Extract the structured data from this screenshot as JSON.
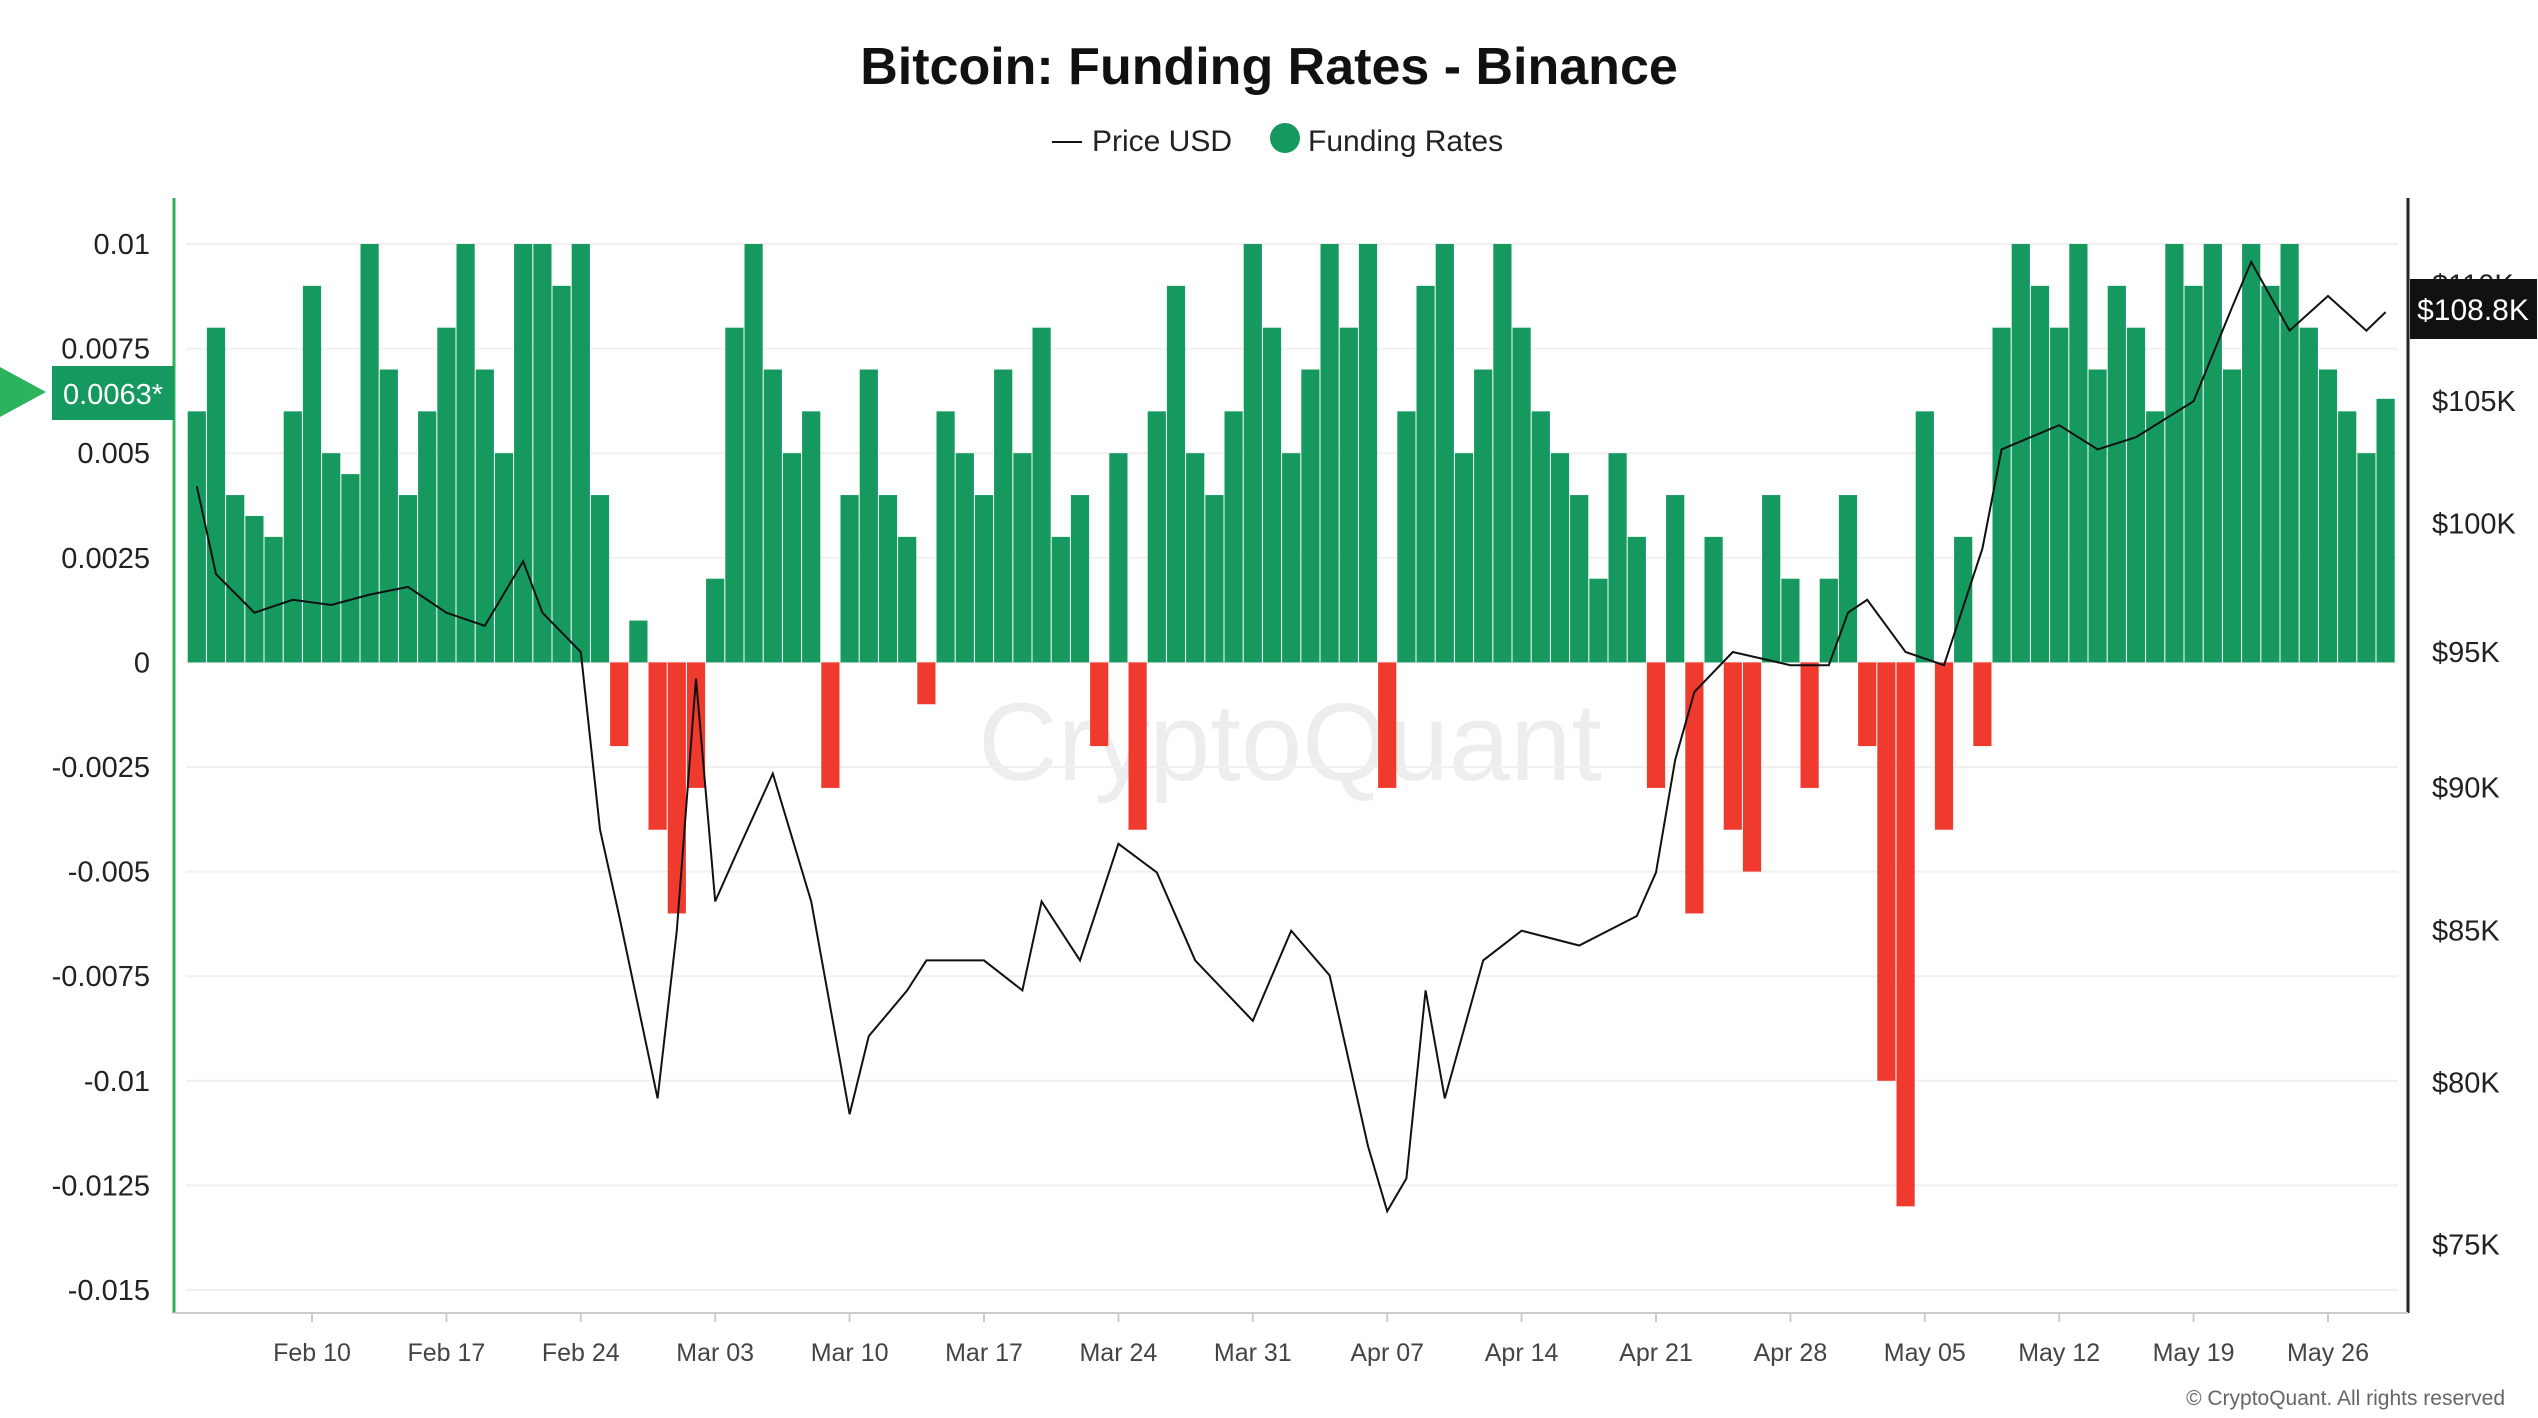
{
  "chart_data": {
    "type": "bar+line",
    "title": "Bitcoin: Funding Rates - Binance",
    "legend": {
      "placement": "top-center",
      "entries": [
        {
          "label": "Price USD",
          "symbol": "line",
          "color": "#111111"
        },
        {
          "label": "Funding Rates",
          "symbol": "dot",
          "color": "#15995f"
        }
      ]
    },
    "colors": {
      "positive": "#15995f",
      "negative": "#f03a2e",
      "price": "#111111",
      "axis_left": "#2db35d"
    },
    "left_axis": {
      "range": [
        -0.015,
        0.01
      ],
      "ticks": [
        "0.01",
        "0.0075",
        "0.005",
        "0.0025",
        "0",
        "-0.0025",
        "-0.005",
        "-0.0075",
        "-0.01",
        "-0.0125",
        "-0.015"
      ]
    },
    "right_axis": {
      "scale": "log",
      "range": [
        75000,
        110000
      ],
      "ticks": [
        {
          "value": 110000,
          "label": "$110K"
        },
        {
          "value": 105000,
          "label": "$105K"
        },
        {
          "value": 100000,
          "label": "$100K"
        },
        {
          "value": 95000,
          "label": "$95K"
        },
        {
          "value": 90000,
          "label": "$90K"
        },
        {
          "value": 85000,
          "label": "$85K"
        },
        {
          "value": 80000,
          "label": "$80K"
        },
        {
          "value": 75000,
          "label": "$75K"
        }
      ]
    },
    "x_ticks": [
      "Feb 10",
      "Feb 17",
      "Feb 24",
      "Mar 03",
      "Mar 10",
      "Mar 17",
      "Mar 24",
      "Mar 31",
      "Apr 07",
      "Apr 14",
      "Apr 21",
      "Apr 28",
      "May 05",
      "May 12",
      "May 19",
      "May 26"
    ],
    "current_funding_label": "0.0063*",
    "current_price_label": "$108.8K",
    "watermark": "CryptoQuant",
    "footer": "© CryptoQuant. All rights reserved",
    "grid": true,
    "funding_dates": [
      "Feb 04",
      "Feb 05",
      "Feb 06",
      "Feb 07",
      "Feb 08",
      "Feb 09",
      "Feb 10",
      "Feb 11",
      "Feb 12",
      "Feb 13",
      "Feb 14",
      "Feb 15",
      "Feb 16",
      "Feb 17",
      "Feb 18",
      "Feb 19",
      "Feb 20",
      "Feb 21",
      "Feb 22",
      "Feb 23",
      "Feb 24",
      "Feb 25",
      "Feb 26",
      "Feb 27",
      "Feb 28",
      "Mar 01",
      "Mar 02",
      "Mar 03",
      "Mar 04",
      "Mar 05",
      "Mar 06",
      "Mar 07",
      "Mar 08",
      "Mar 09",
      "Mar 10",
      "Mar 11",
      "Mar 12",
      "Mar 13",
      "Mar 14",
      "Mar 15",
      "Mar 16",
      "Mar 17",
      "Mar 18",
      "Mar 19",
      "Mar 20",
      "Mar 21",
      "Mar 22",
      "Mar 23",
      "Mar 24",
      "Mar 25",
      "Mar 26",
      "Mar 27",
      "Mar 28",
      "Mar 29",
      "Mar 30",
      "Mar 31",
      "Apr 01",
      "Apr 02",
      "Apr 03",
      "Apr 04",
      "Apr 05",
      "Apr 06",
      "Apr 07",
      "Apr 08",
      "Apr 09",
      "Apr 10",
      "Apr 11",
      "Apr 12",
      "Apr 13",
      "Apr 14",
      "Apr 15",
      "Apr 16",
      "Apr 17",
      "Apr 18",
      "Apr 19",
      "Apr 20",
      "Apr 21",
      "Apr 22",
      "Apr 23",
      "Apr 24",
      "Apr 25",
      "Apr 26",
      "Apr 27",
      "Apr 28",
      "Apr 29",
      "Apr 30",
      "May 01",
      "May 02",
      "May 03",
      "May 04",
      "May 05",
      "May 06",
      "May 07",
      "May 08",
      "May 09",
      "May 10",
      "May 11",
      "May 12",
      "May 13",
      "May 14",
      "May 15",
      "May 16",
      "May 17",
      "May 18",
      "May 19",
      "May 20",
      "May 21",
      "May 22",
      "May 23",
      "May 24",
      "May 25",
      "May 26",
      "May 27",
      "May 28",
      "May 29"
    ],
    "funding_rates": [
      0.006,
      0.008,
      0.004,
      0.0035,
      0.003,
      0.006,
      0.009,
      0.005,
      0.0045,
      0.01,
      0.007,
      0.004,
      0.006,
      0.008,
      0.01,
      0.007,
      0.005,
      0.01,
      0.01,
      0.009,
      0.01,
      0.004,
      -0.002,
      0.001,
      -0.004,
      -0.006,
      -0.003,
      0.002,
      0.008,
      0.01,
      0.007,
      0.005,
      0.006,
      -0.003,
      0.004,
      0.007,
      0.004,
      0.003,
      -0.001,
      0.006,
      0.005,
      0.004,
      0.007,
      0.005,
      0.008,
      0.003,
      0.004,
      -0.002,
      0.005,
      -0.004,
      0.006,
      0.009,
      0.005,
      0.004,
      0.006,
      0.01,
      0.008,
      0.005,
      0.007,
      0.01,
      0.008,
      0.01,
      -0.003,
      0.006,
      0.009,
      0.01,
      0.005,
      0.007,
      0.01,
      0.008,
      0.006,
      0.005,
      0.004,
      0.002,
      0.005,
      0.003,
      -0.003,
      0.004,
      -0.006,
      0.003,
      -0.004,
      -0.005,
      0.004,
      0.002,
      -0.003,
      0.002,
      0.004,
      -0.002,
      -0.01,
      -0.013,
      0.006,
      -0.004,
      0.003,
      -0.002,
      0.008,
      0.01,
      0.009,
      0.008,
      0.01,
      0.007,
      0.009,
      0.008,
      0.006,
      0.01,
      0.009,
      0.01,
      0.007,
      0.01,
      0.009,
      0.01,
      0.008,
      0.007,
      0.006,
      0.005,
      0.0063
    ],
    "price_points": [
      [
        "Feb 04",
        101500
      ],
      [
        "Feb 05",
        98000
      ],
      [
        "Feb 07",
        96500
      ],
      [
        "Feb 09",
        97000
      ],
      [
        "Feb 11",
        96800
      ],
      [
        "Feb 13",
        97200
      ],
      [
        "Feb 15",
        97500
      ],
      [
        "Feb 17",
        96500
      ],
      [
        "Feb 19",
        96000
      ],
      [
        "Feb 21",
        98500
      ],
      [
        "Feb 22",
        96500
      ],
      [
        "Feb 24",
        95000
      ],
      [
        "Feb 25",
        88500
      ],
      [
        "Feb 26",
        85500
      ],
      [
        "Feb 28",
        79500
      ],
      [
        "Mar 01",
        85000
      ],
      [
        "Mar 02",
        94000
      ],
      [
        "Mar 03",
        86000
      ],
      [
        "Mar 04",
        87500
      ],
      [
        "Mar 06",
        90500
      ],
      [
        "Mar 08",
        86000
      ],
      [
        "Mar 10",
        79000
      ],
      [
        "Mar 11",
        81500
      ],
      [
        "Mar 13",
        83000
      ],
      [
        "Mar 14",
        84000
      ],
      [
        "Mar 17",
        84000
      ],
      [
        "Mar 19",
        83000
      ],
      [
        "Mar 20",
        86000
      ],
      [
        "Mar 22",
        84000
      ],
      [
        "Mar 24",
        88000
      ],
      [
        "Mar 26",
        87000
      ],
      [
        "Mar 28",
        84000
      ],
      [
        "Mar 31",
        82000
      ],
      [
        "Apr 02",
        85000
      ],
      [
        "Apr 04",
        83500
      ],
      [
        "Apr 06",
        78000
      ],
      [
        "Apr 07",
        76000
      ],
      [
        "Apr 08",
        77000
      ],
      [
        "Apr 09",
        83000
      ],
      [
        "Apr 10",
        79500
      ],
      [
        "Apr 12",
        84000
      ],
      [
        "Apr 14",
        85000
      ],
      [
        "Apr 17",
        84500
      ],
      [
        "Apr 20",
        85500
      ],
      [
        "Apr 21",
        87000
      ],
      [
        "Apr 22",
        91000
      ],
      [
        "Apr 23",
        93500
      ],
      [
        "Apr 25",
        95000
      ],
      [
        "Apr 28",
        94500
      ],
      [
        "Apr 30",
        94500
      ],
      [
        "May 01",
        96500
      ],
      [
        "May 02",
        97000
      ],
      [
        "May 04",
        95000
      ],
      [
        "May 06",
        94500
      ],
      [
        "May 08",
        99000
      ],
      [
        "May 09",
        103000
      ],
      [
        "May 12",
        104000
      ],
      [
        "May 14",
        103000
      ],
      [
        "May 16",
        103500
      ],
      [
        "May 19",
        105000
      ],
      [
        "May 21",
        109000
      ],
      [
        "May 22",
        111000
      ],
      [
        "May 24",
        108000
      ],
      [
        "May 26",
        109500
      ],
      [
        "May 28",
        108000
      ],
      [
        "May 29",
        108800
      ]
    ]
  }
}
